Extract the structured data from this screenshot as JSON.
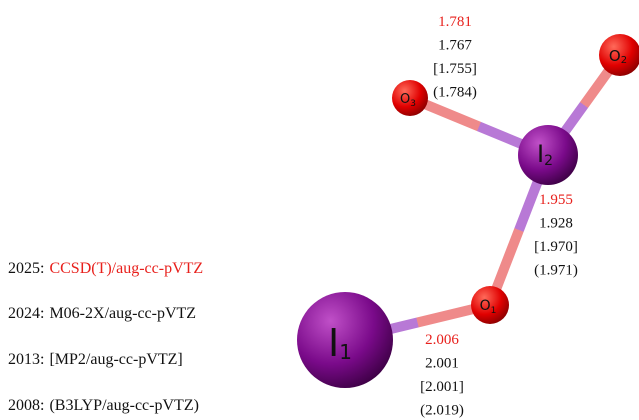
{
  "atoms": [
    {
      "symbol": "I",
      "index": "1"
    },
    {
      "symbol": "O",
      "index": "1"
    },
    {
      "symbol": "I",
      "index": "2"
    },
    {
      "symbol": "O",
      "index": "3"
    },
    {
      "symbol": "O",
      "index": "2"
    }
  ],
  "bonds": [
    {
      "lengths": [
        "2.006",
        "2.001",
        "[2.001]",
        "(2.019)"
      ]
    },
    {
      "lengths": [
        "1.955",
        "1.928",
        "[1.970]",
        "(1.971)"
      ]
    },
    {
      "lengths": [
        "1.781",
        "1.767",
        "[1.755]",
        "(1.784)"
      ]
    }
  ],
  "legend": [
    {
      "year": "2025:",
      "method": "CCSD(T)/aug-cc-pVTZ"
    },
    {
      "year": "2024:",
      "method": "M06-2X/aug-cc-pVTZ"
    },
    {
      "year": "2013:",
      "method": "[MP2/aug-cc-pVTZ]"
    },
    {
      "year": "2008:",
      "method": "(B3LYP/aug-cc-pVTZ)"
    }
  ]
}
